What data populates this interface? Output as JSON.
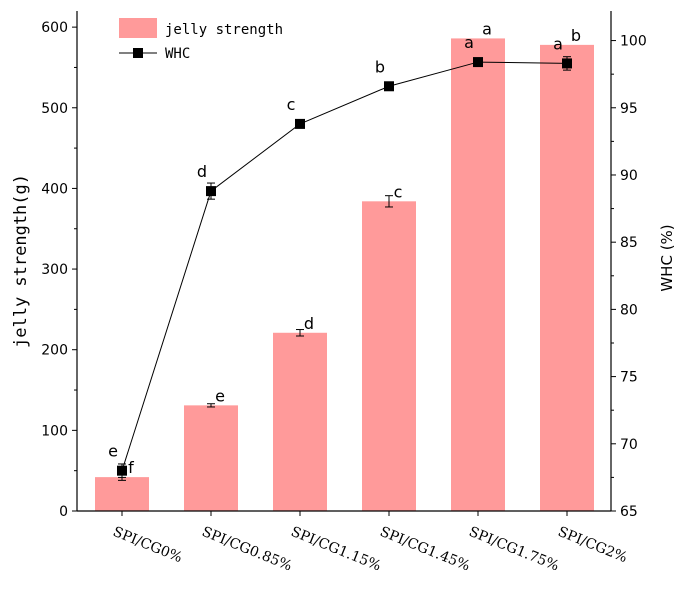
{
  "chart_data": {
    "type": "bar+line",
    "categories": [
      "SPI/CG0%",
      "SPI/CG0.85%",
      "SPI/CG1.15%",
      "SPI/CG1.45%",
      "SPI/CG1.75%",
      "SPI/CG2%"
    ],
    "series": [
      {
        "name": "jelly strength",
        "type": "bar",
        "axis": "left",
        "color": "#ff9a9a",
        "values": [
          42,
          131,
          221,
          384,
          586,
          578
        ],
        "errors": [
          4,
          2,
          4,
          7,
          0,
          0
        ],
        "labels": [
          "f",
          "e",
          "d",
          "c",
          "a",
          "b"
        ]
      },
      {
        "name": "WHC",
        "type": "line",
        "axis": "right",
        "color": "#000000",
        "values": [
          68.0,
          88.8,
          93.8,
          96.6,
          98.4,
          98.3
        ],
        "errors": [
          0.5,
          0.6,
          0.3,
          0.2,
          0.3,
          0.5
        ],
        "labels": [
          "e",
          "d",
          "c",
          "b",
          "a",
          "a"
        ]
      }
    ],
    "ylabel": "jelly strength(g)",
    "y2label": "WHC (%)",
    "ylim": [
      0,
      620
    ],
    "y2lim": [
      65,
      102.2
    ],
    "yticks": [
      0,
      100,
      200,
      300,
      400,
      500,
      600
    ],
    "y2ticks": [
      65,
      70,
      75,
      80,
      85,
      90,
      95,
      100
    ],
    "legend": [
      "jelly strength",
      "WHC"
    ],
    "legend_position": "top-left"
  }
}
